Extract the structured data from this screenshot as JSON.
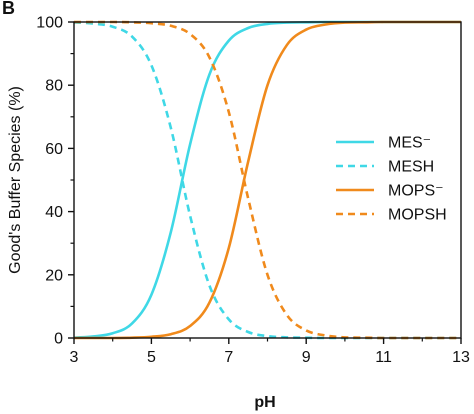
{
  "panel_letter": "B",
  "chart_data": {
    "type": "line",
    "title": "",
    "xlabel": "pH",
    "ylabel": "Good's Buffer Species (%)",
    "xlim": [
      3,
      13
    ],
    "ylim": [
      0,
      100
    ],
    "x_ticks": [
      3,
      5,
      7,
      9,
      11,
      13
    ],
    "y_ticks": [
      0,
      20,
      40,
      60,
      80,
      100
    ],
    "x": [
      3.0,
      3.5,
      4.0,
      4.5,
      5.0,
      5.5,
      6.0,
      6.5,
      7.0,
      7.5,
      8.0,
      8.5,
      9.0,
      9.5,
      10.0,
      10.5,
      11.0,
      11.5,
      12.0,
      12.5,
      13.0
    ],
    "series": [
      {
        "name": "MES⁻",
        "color": "#3fd8e6",
        "dash": "solid",
        "values": [
          0.1,
          0.5,
          1.5,
          4.6,
          13.7,
          33.4,
          61.3,
          83.4,
          94.1,
          98.1,
          99.4,
          99.8,
          99.9,
          100,
          100,
          100,
          100,
          100,
          100,
          100,
          100
        ]
      },
      {
        "name": "MESH",
        "color": "#3fd8e6",
        "dash": "dashed",
        "values": [
          99.9,
          99.5,
          98.5,
          95.4,
          86.3,
          66.6,
          38.7,
          16.6,
          5.9,
          1.9,
          0.6,
          0.2,
          0.1,
          0,
          0,
          0,
          0,
          0,
          0,
          0,
          0
        ]
      },
      {
        "name": "MOPS⁻",
        "color": "#f08a1c",
        "dash": "solid",
        "values": [
          0,
          0,
          0,
          0.1,
          0.4,
          1.2,
          3.8,
          11.2,
          28.5,
          55.8,
          80.0,
          92.7,
          97.6,
          99.2,
          99.8,
          99.9,
          100,
          100,
          100,
          100,
          100
        ]
      },
      {
        "name": "MOPSH",
        "color": "#f08a1c",
        "dash": "dashed",
        "values": [
          100,
          100,
          100,
          99.9,
          99.6,
          98.8,
          96.2,
          88.8,
          71.5,
          44.2,
          20.0,
          7.3,
          2.4,
          0.8,
          0.2,
          0.1,
          0,
          0,
          0,
          0,
          0
        ]
      }
    ],
    "grid": false,
    "legend_position": "right-middle"
  }
}
